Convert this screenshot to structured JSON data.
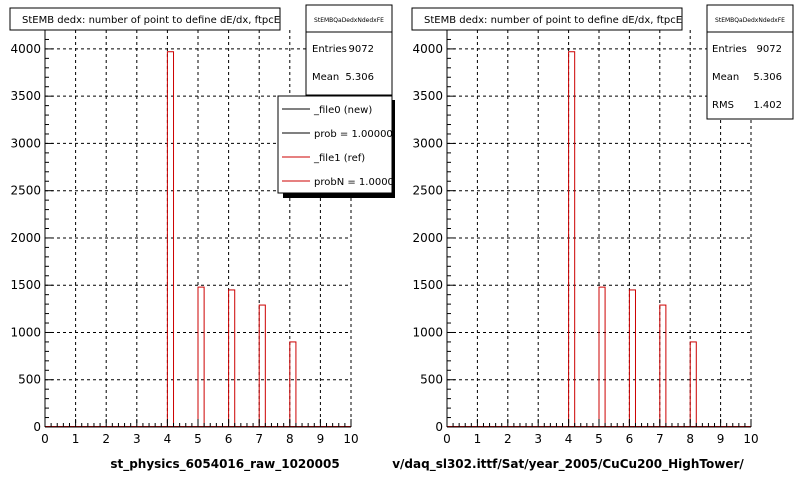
{
  "chart_data": [
    {
      "type": "bar",
      "title": "StEMB dedx: number of point to define dE/dx, ftpcE",
      "xlabel": "st_physics_6054016_raw_1020005",
      "ylabel": "",
      "xlim": [
        0,
        10
      ],
      "ylim": [
        0,
        4200
      ],
      "x_ticks": [
        0,
        1,
        2,
        3,
        4,
        5,
        6,
        7,
        8,
        9,
        10
      ],
      "y_ticks": [
        0,
        500,
        1000,
        1500,
        2000,
        2500,
        3000,
        3500,
        4000
      ],
      "grid": true,
      "stats": {
        "name": "StEMBQaDedxNdedxFE",
        "entries_label": "Entries",
        "entries": "9072",
        "mean_label": "Mean",
        "mean": "5.306"
      },
      "legend": {
        "position": "top-right",
        "items": [
          {
            "label": "_file0 (new)",
            "color": "#000000"
          },
          {
            "label": "prob = 1.000000",
            "color": "#000000"
          },
          {
            "label": "_file1 (ref)",
            "color": "#cc0000"
          },
          {
            "label": "probN = 1.000000",
            "color": "#cc0000"
          }
        ]
      },
      "series": [
        {
          "name": "_file1 (ref)",
          "color": "#cc0000",
          "bins": [
            {
              "x": 4,
              "value": 3970
            },
            {
              "x": 5,
              "value": 1480
            },
            {
              "x": 6,
              "value": 1450
            },
            {
              "x": 7,
              "value": 1290
            },
            {
              "x": 8,
              "value": 900
            }
          ]
        }
      ]
    },
    {
      "type": "bar",
      "title": "StEMB dedx: number of point to define dE/dx, ftpcE",
      "xlabel": "v/daq_sl302.ittf/Sat/year_2005/CuCu200_HighTower/",
      "ylabel": "",
      "xlim": [
        0,
        10
      ],
      "ylim": [
        0,
        4200
      ],
      "x_ticks": [
        0,
        1,
        2,
        3,
        4,
        5,
        6,
        7,
        8,
        9,
        10
      ],
      "y_ticks": [
        0,
        500,
        1000,
        1500,
        2000,
        2500,
        3000,
        3500,
        4000
      ],
      "grid": true,
      "stats": {
        "name": "StEMBQaDedxNdedxFE",
        "entries_label": "Entries",
        "entries": "9072",
        "mean_label": "Mean",
        "mean": "5.306",
        "rms_label": "RMS",
        "rms": "1.402"
      },
      "series": [
        {
          "name": "",
          "color": "#cc0000",
          "bins": [
            {
              "x": 4,
              "value": 3970
            },
            {
              "x": 5,
              "value": 1480
            },
            {
              "x": 6,
              "value": 1450
            },
            {
              "x": 7,
              "value": 1290
            },
            {
              "x": 8,
              "value": 900
            }
          ]
        }
      ]
    }
  ]
}
